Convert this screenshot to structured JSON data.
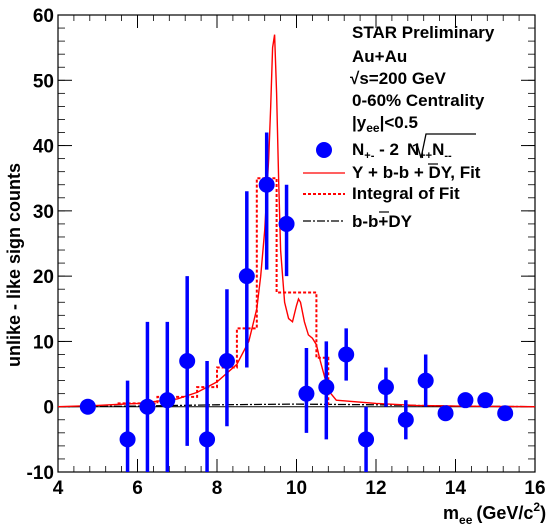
{
  "chart_data": {
    "type": "scatter",
    "xlabel_main": "m",
    "xlabel_sub": "ee",
    "xlabel_unit": "(GeV/c",
    "xlabel_sup": "2",
    "xlabel_close": ")",
    "ylabel": "unlike - like sign counts",
    "xlim": [
      4,
      16
    ],
    "ylim": [
      -10,
      60
    ],
    "xticks": [
      4,
      6,
      8,
      10,
      12,
      14,
      16
    ],
    "yticks": [
      -10,
      0,
      10,
      20,
      30,
      40,
      50,
      60
    ],
    "grid": false,
    "legend_position": "top-right",
    "annotations": {
      "line1": "STAR Preliminary",
      "line2": "Au+Au",
      "line3_root": "√",
      "line3_rest": "s=200 GeV",
      "line4": "0-60% Centrality",
      "line5_a": "|y",
      "line5_sub": "ee",
      "line5_b": "|<0.5"
    },
    "legend": {
      "entry1_a": "N",
      "entry1_sub1": "+-",
      "entry1_b": " - 2",
      "entry1_c": "N",
      "entry1_sub2": "++",
      "entry1_d": "N",
      "entry1_sub3": "--",
      "entry2": "Υ + b-b + DY, Fit",
      "entry3": "Integral of Fit",
      "entry4": "b-b+DY"
    },
    "series": [
      {
        "kind": "points",
        "color": "#0000ff",
        "x": [
          4.75,
          5.75,
          6.25,
          6.75,
          7.25,
          7.75,
          8.25,
          8.75,
          9.25,
          9.75,
          10.25,
          10.75,
          11.25,
          11.75,
          12.25,
          12.75,
          13.25,
          13.75,
          14.25,
          14.75,
          15.25
        ],
        "y": [
          0,
          -5,
          0,
          1,
          7,
          -5,
          7,
          20,
          34,
          28,
          2,
          3,
          8,
          -5,
          3,
          -2,
          4,
          -1,
          1,
          1,
          -1
        ],
        "y_low": [
          0,
          -10,
          -10,
          -10,
          -6,
          -10,
          -3,
          6,
          21,
          20,
          -4,
          -5,
          4,
          -10,
          0,
          -5,
          0,
          -1.5,
          0.5,
          0.5,
          -1.5
        ],
        "y_high": [
          0,
          4,
          13,
          13,
          20,
          7,
          18,
          33,
          42,
          34,
          9,
          10,
          12,
          0,
          6,
          1,
          8,
          -0.5,
          1.5,
          2,
          -0.5
        ]
      },
      {
        "kind": "curve",
        "color": "#ff0000",
        "x": [
          4,
          5,
          6,
          7,
          7.5,
          8,
          8.5,
          8.8,
          9.0,
          9.1,
          9.2,
          9.3,
          9.35,
          9.4,
          9.45,
          9.5,
          9.55,
          9.6,
          9.7,
          9.8,
          9.9,
          10.0,
          10.05,
          10.1,
          10.2,
          10.3,
          10.4,
          10.5,
          10.6,
          10.8,
          11,
          12,
          13,
          14,
          15,
          16
        ],
        "y": [
          0,
          0.2,
          0.5,
          1.2,
          2.2,
          3.8,
          6.5,
          10,
          15,
          20,
          27,
          38,
          46,
          55,
          57,
          48,
          35,
          24,
          16,
          13.5,
          13,
          15.5,
          16.5,
          16,
          13,
          11,
          10.5,
          9.5,
          7,
          2.5,
          1,
          0.5,
          0.2,
          0.1,
          0.05,
          0
        ]
      },
      {
        "kind": "steps",
        "color": "#ff0000",
        "x_edges": [
          5.5,
          6.5,
          7.5,
          8,
          8.5,
          9,
          9.5,
          10,
          10.5,
          10.8
        ],
        "y": [
          0.5,
          1.5,
          3,
          6,
          12,
          35,
          17.5,
          17.5,
          7.5
        ]
      },
      {
        "kind": "baseline",
        "color": "#000000",
        "x": [
          4,
          6,
          8,
          10,
          12,
          14,
          16
        ],
        "y": [
          0,
          0.1,
          0.3,
          0.4,
          0.3,
          0.1,
          0
        ]
      }
    ]
  }
}
